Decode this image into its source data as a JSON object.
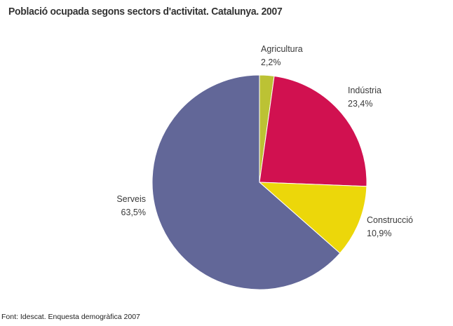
{
  "title": "Població ocupada segons sectors d'activitat. Catalunya. 2007",
  "source": "Font: Idescat. Enquesta demogràfica 2007",
  "chart_data": {
    "type": "pie",
    "slices": [
      {
        "name": "Agricultura",
        "value": 2.2,
        "label": "2,2%",
        "color": "#bcc234"
      },
      {
        "name": "Indústria",
        "value": 23.4,
        "label": "23,4%",
        "color": "#d11150"
      },
      {
        "name": "Construcció",
        "value": 10.9,
        "label": "10,9%",
        "color": "#ecd70a"
      },
      {
        "name": "Serveis",
        "value": 63.5,
        "label": "63,5%",
        "color": "#626798"
      }
    ],
    "start": "12 o'clock",
    "direction": "clockwise",
    "legend": "none"
  }
}
